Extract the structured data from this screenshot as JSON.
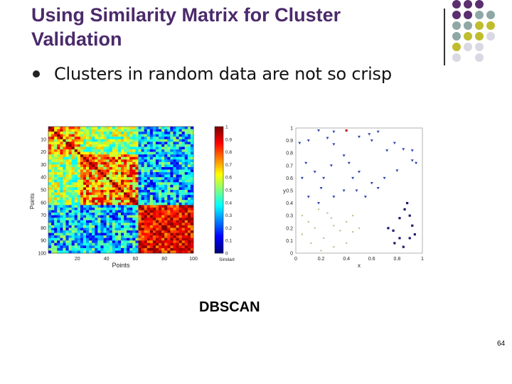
{
  "slide": {
    "title": "Using Similarity Matrix for Cluster Validation",
    "bullet": "Clusters in random data are not so crisp",
    "caption": "DBSCAN",
    "page_number": "64"
  },
  "decor": {
    "colors": [
      "#5b2e70",
      "#8fa8a5",
      "#bfbd2e",
      "#d9d9e4"
    ]
  },
  "chart_data": [
    {
      "type": "heatmap",
      "title": "",
      "xlabel": "Points",
      "ylabel": "Points",
      "x_ticks": [
        "20",
        "40",
        "60",
        "80",
        "100"
      ],
      "y_ticks": [
        "10",
        "20",
        "30",
        "40",
        "50",
        "60",
        "70",
        "80",
        "90",
        "100"
      ],
      "colorbar_label": "Similarity",
      "colorbar_ticks": [
        "0",
        "0.1",
        "0.2",
        "0.3",
        "0.4",
        "0.5",
        "0.6",
        "0.7",
        "0.8",
        "0.9",
        "1"
      ],
      "n_points": 100,
      "blocks": [
        [
          1,
          22
        ],
        [
          23,
          62
        ],
        [
          63,
          100
        ]
      ],
      "xlim": [
        0,
        100
      ],
      "ylim": [
        0,
        100
      ]
    },
    {
      "type": "scatter",
      "title": "",
      "xlabel": "x",
      "ylabel": "y",
      "x_ticks": [
        "0",
        "0.2",
        "0.4",
        "0.6",
        "0.8",
        "1"
      ],
      "y_ticks": [
        "0",
        "0.1",
        "0.2",
        "0.3",
        "0.4",
        "0.5",
        "0.6",
        "0.7",
        "0.8",
        "0.9",
        "1"
      ],
      "xlim": [
        0,
        1
      ],
      "ylim": [
        0,
        1
      ],
      "series": [
        {
          "color": "#3344aa",
          "marker": "triangle",
          "points": [
            [
              0.03,
              0.88
            ],
            [
              0.1,
              0.9
            ],
            [
              0.18,
              0.98
            ],
            [
              0.25,
              0.92
            ],
            [
              0.3,
              0.87
            ],
            [
              0.3,
              0.97
            ],
            [
              0.38,
              0.78
            ],
            [
              0.42,
              0.72
            ],
            [
              0.5,
              0.93
            ],
            [
              0.58,
              0.95
            ],
            [
              0.6,
              0.9
            ],
            [
              0.65,
              0.97
            ],
            [
              0.72,
              0.82
            ],
            [
              0.78,
              0.88
            ],
            [
              0.85,
              0.83
            ],
            [
              0.92,
              0.82
            ],
            [
              0.95,
              0.72
            ],
            [
              0.92,
              0.74
            ],
            [
              0.8,
              0.66
            ],
            [
              0.7,
              0.6
            ],
            [
              0.6,
              0.56
            ],
            [
              0.5,
              0.65
            ],
            [
              0.48,
              0.5
            ],
            [
              0.38,
              0.5
            ],
            [
              0.3,
              0.45
            ],
            [
              0.22,
              0.6
            ],
            [
              0.15,
              0.65
            ],
            [
              0.08,
              0.72
            ],
            [
              0.05,
              0.6
            ],
            [
              0.2,
              0.52
            ],
            [
              0.28,
              0.7
            ],
            [
              0.45,
              0.6
            ],
            [
              0.55,
              0.45
            ],
            [
              0.65,
              0.52
            ],
            [
              0.1,
              0.45
            ],
            [
              0.18,
              0.4
            ]
          ]
        },
        {
          "color": "#c8b890",
          "marker": "dot",
          "points": [
            [
              0.05,
              0.3
            ],
            [
              0.1,
              0.25
            ],
            [
              0.18,
              0.35
            ],
            [
              0.25,
              0.32
            ],
            [
              0.3,
              0.22
            ],
            [
              0.35,
              0.18
            ],
            [
              0.4,
              0.25
            ],
            [
              0.45,
              0.17
            ],
            [
              0.5,
              0.2
            ],
            [
              0.05,
              0.15
            ],
            [
              0.15,
              0.2
            ],
            [
              0.22,
              0.12
            ],
            [
              0.3,
              0.05
            ],
            [
              0.4,
              0.08
            ],
            [
              0.12,
              0.08
            ],
            [
              0.28,
              0.28
            ],
            [
              0.2,
              0.02
            ],
            [
              0.45,
              0.3
            ]
          ]
        },
        {
          "color": "#1a1a6e",
          "marker": "square",
          "points": [
            [
              0.73,
              0.2
            ],
            [
              0.77,
              0.18
            ],
            [
              0.82,
              0.28
            ],
            [
              0.86,
              0.35
            ],
            [
              0.9,
              0.3
            ],
            [
              0.92,
              0.22
            ],
            [
              0.82,
              0.12
            ],
            [
              0.85,
              0.05
            ],
            [
              0.9,
              0.12
            ],
            [
              0.78,
              0.08
            ],
            [
              0.88,
              0.4
            ],
            [
              0.94,
              0.15
            ]
          ]
        },
        {
          "color": "#cc2222",
          "marker": "square",
          "points": [
            [
              0.4,
              0.98
            ]
          ]
        }
      ]
    }
  ]
}
